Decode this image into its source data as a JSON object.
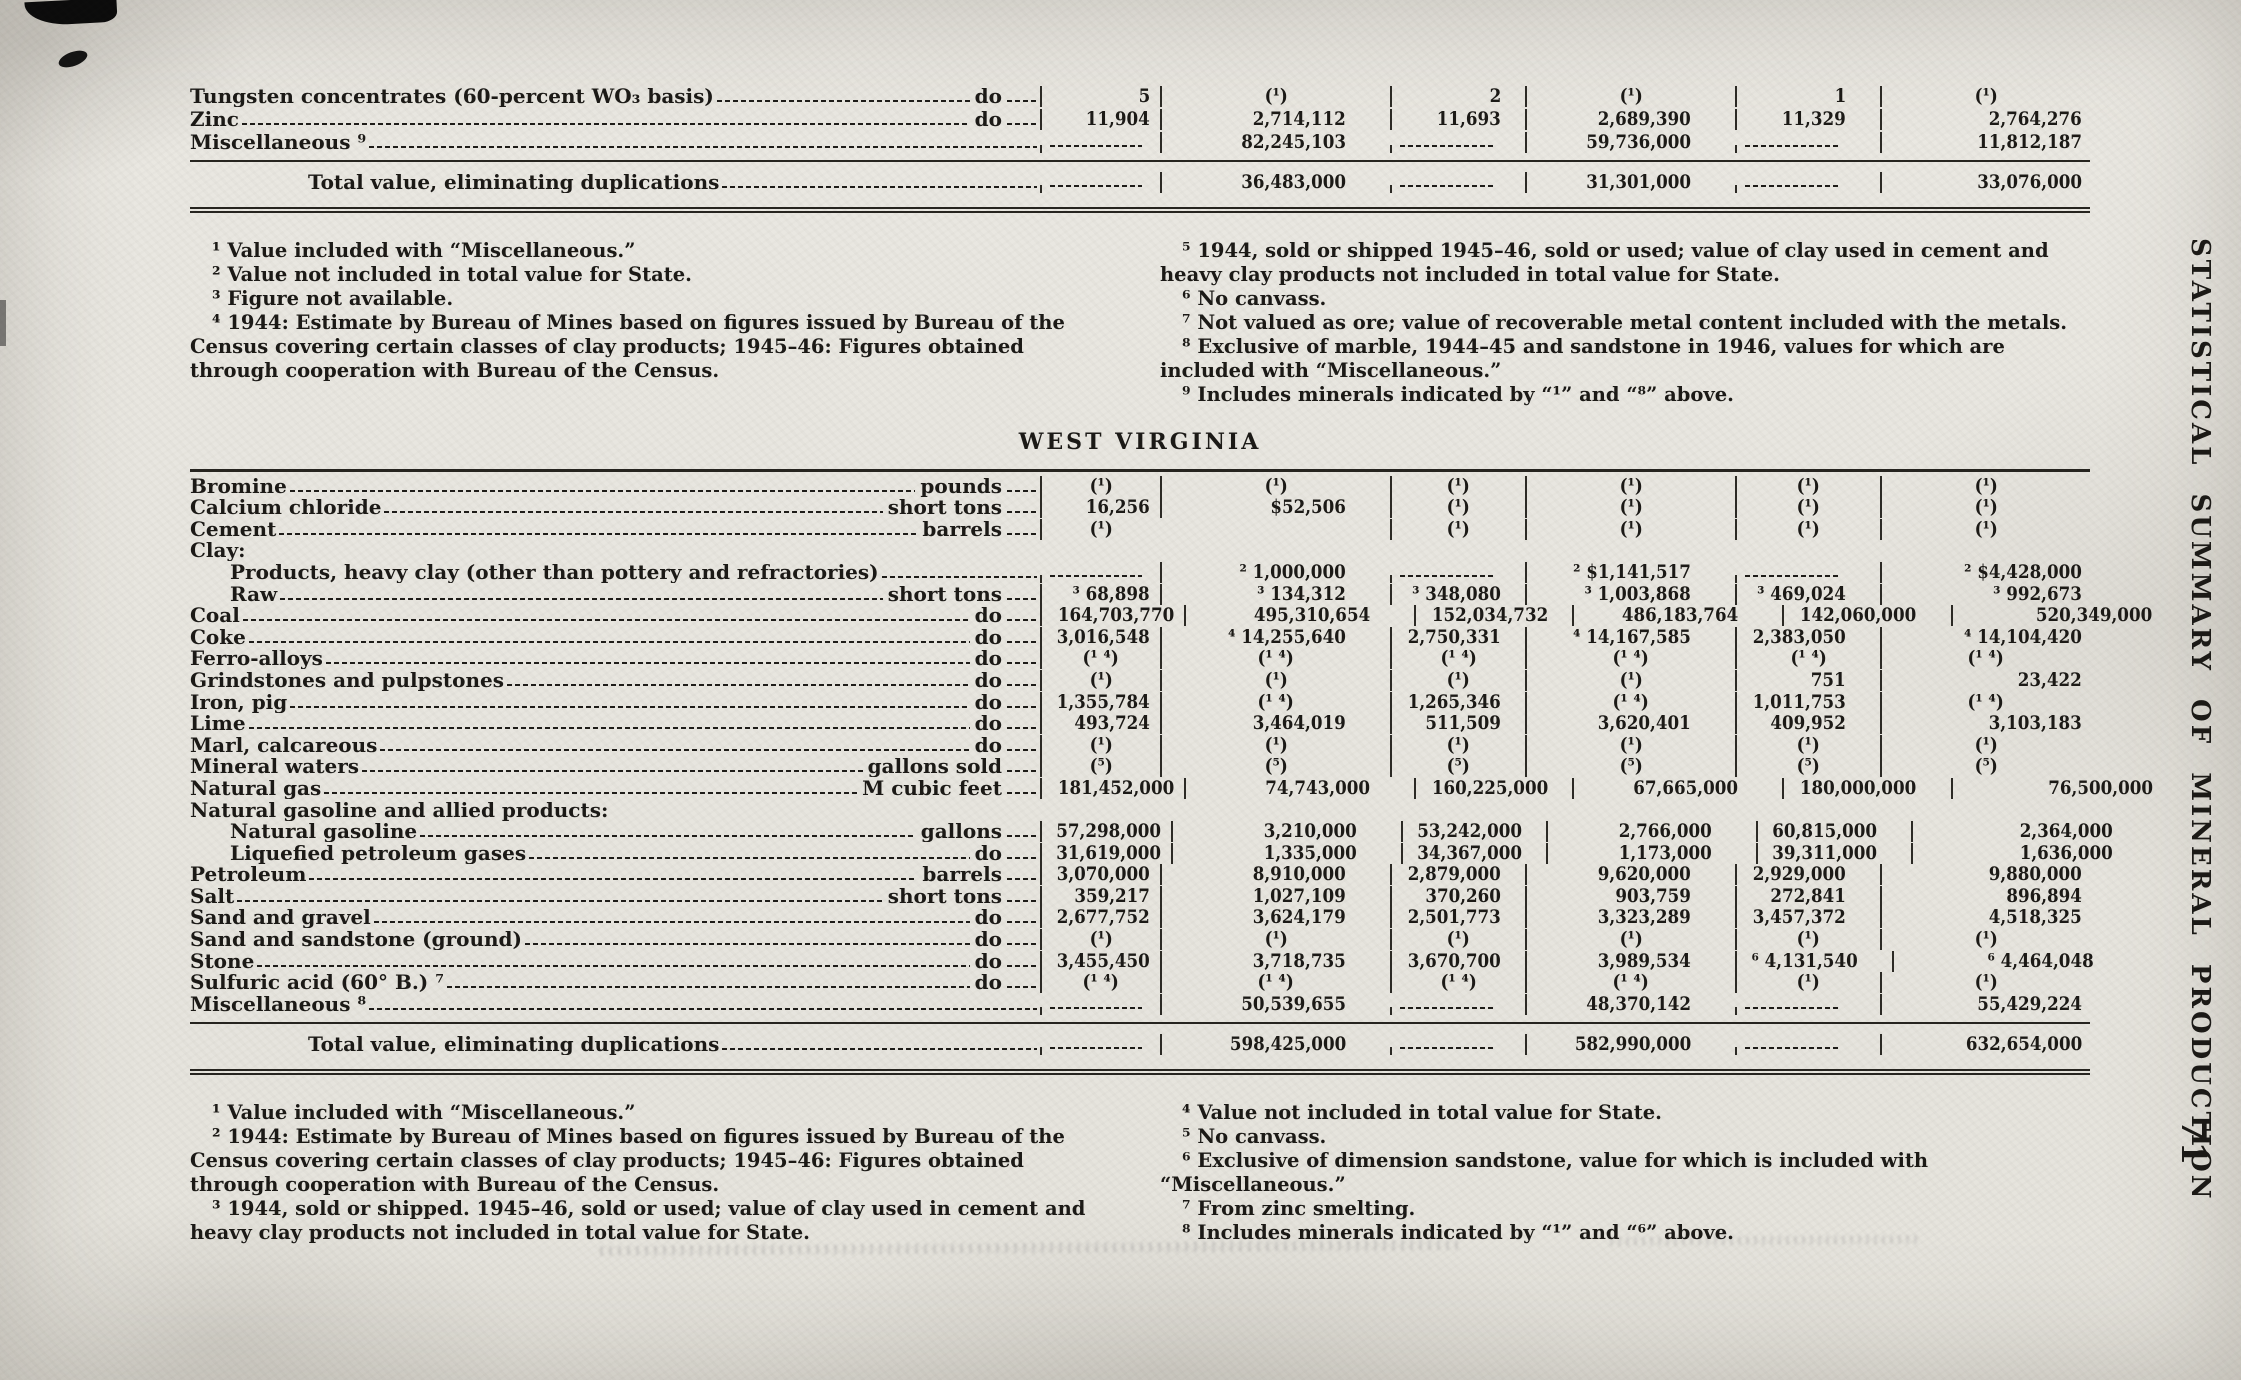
{
  "page": {
    "side_text": "STATISTICAL SUMMARY OF MINERAL PRODUCTION",
    "page_number": "71"
  },
  "section_title": "WEST VIRGINIA",
  "top_table": {
    "rows": [
      {
        "name": "Tungsten concentrates (60-percent WO₃ basis)",
        "unit": "do",
        "cells": [
          "5",
          "(¹)",
          "2",
          "(¹)",
          "1",
          "(¹)"
        ]
      },
      {
        "name": "Zinc",
        "unit": "do",
        "cells": [
          "11,904",
          "2,714,112",
          "11,693",
          "2,689,390",
          "11,329",
          "2,764,276"
        ]
      },
      {
        "name": "Miscellaneous ⁹",
        "unit": "",
        "cells": [
          "---",
          "82,245,103",
          "---",
          "59,736,000",
          "---",
          "11,812,187"
        ]
      }
    ],
    "total_row": {
      "name": "Total value, eliminating duplications",
      "unit": "",
      "cells": [
        "---",
        "36,483,000",
        "---",
        "31,301,000",
        "---",
        "33,076,000"
      ]
    }
  },
  "footnotes_top": {
    "left": [
      "¹ Value included with “Miscellaneous.”",
      "² Value not included in total value for State.",
      "³ Figure not available.",
      "⁴ 1944: Estimate by Bureau of Mines based on figures issued by Bureau of the Census covering certain classes of clay products; 1945–46: Figures obtained through cooperation with Bureau of the Census."
    ],
    "right": [
      "⁵ 1944, sold or shipped  1945–46, sold or used; value of clay used in cement and heavy clay products not included in total value for State.",
      "⁶ No canvass.",
      "⁷ Not valued as ore; value of recoverable metal content included with the metals.",
      "⁸ Exclusive of marble, 1944–45 and sandstone in 1946, values for which are included with “Miscellaneous.”",
      "⁹ Includes minerals indicated by “¹” and “⁸” above."
    ]
  },
  "main_table": {
    "rows": [
      {
        "name": "Bromine",
        "unit": "pounds",
        "cells": [
          "(¹)",
          "(¹)",
          "(¹)",
          "(¹)",
          "(¹)",
          "(¹)"
        ]
      },
      {
        "name": "Calcium chloride",
        "unit": "short tons",
        "cells": [
          "16,256",
          "$52,506",
          "(¹)",
          "(¹)",
          "(¹)",
          "(¹)"
        ]
      },
      {
        "name": "Cement",
        "unit": "barrels",
        "cells": [
          "(¹)",
          "",
          "(¹)",
          "(¹)",
          "(¹)",
          "(¹)"
        ]
      },
      {
        "name": "Clay:",
        "group": true
      },
      {
        "name": "Products, heavy clay (other than pottery and refractories)",
        "unit": "",
        "indent": 1,
        "cells": [
          "---",
          "² 1,000,000",
          "---",
          "² $1,141,517",
          "---",
          "² $4,428,000"
        ]
      },
      {
        "name": "Raw",
        "unit": "short tons",
        "indent": 1,
        "cells": [
          "³ 68,898",
          "³ 134,312",
          "³ 348,080",
          "³ 1,003,868",
          "³ 469,024",
          "³ 992,673"
        ]
      },
      {
        "name": "Coal",
        "unit": "do",
        "cells": [
          "164,703,770",
          "495,310,654",
          "152,034,732",
          "486,183,764",
          "142,060,000",
          "520,349,000"
        ]
      },
      {
        "name": "Coke",
        "unit": "do",
        "cells": [
          "3,016,548",
          "⁴ 14,255,640",
          "2,750,331",
          "⁴ 14,167,585",
          "2,383,050",
          "⁴ 14,104,420"
        ]
      },
      {
        "name": "Ferro-alloys",
        "unit": "do",
        "cells": [
          "(¹ ⁴)",
          "(¹ ⁴)",
          "(¹ ⁴)",
          "(¹ ⁴)",
          "(¹ ⁴)",
          "(¹ ⁴)"
        ]
      },
      {
        "name": "Grindstones and pulpstones",
        "unit": "do",
        "cells": [
          "(¹)",
          "(¹)",
          "(¹)",
          "(¹)",
          "751",
          "23,422"
        ]
      },
      {
        "name": "Iron, pig",
        "unit": "do",
        "cells": [
          "1,355,784",
          "(¹ ⁴)",
          "1,265,346",
          "(¹ ⁴)",
          "1,011,753",
          "(¹ ⁴)"
        ]
      },
      {
        "name": "Lime",
        "unit": "do",
        "cells": [
          "493,724",
          "3,464,019",
          "511,509",
          "3,620,401",
          "409,952",
          "3,103,183"
        ]
      },
      {
        "name": "Marl, calcareous",
        "unit": "do",
        "cells": [
          "(¹)",
          "(¹)",
          "(¹)",
          "(¹)",
          "(¹)",
          "(¹)"
        ]
      },
      {
        "name": "Mineral waters",
        "unit": "gallons sold",
        "cells": [
          "(⁵)",
          "(⁵)",
          "(⁵)",
          "(⁵)",
          "(⁵)",
          "(⁵)"
        ]
      },
      {
        "name": "Natural gas",
        "unit": "M cubic feet",
        "cells": [
          "181,452,000",
          "74,743,000",
          "160,225,000",
          "67,665,000",
          "180,000,000",
          "76,500,000"
        ]
      },
      {
        "name": "Natural gasoline and allied products:",
        "group": true
      },
      {
        "name": "Natural gasoline",
        "unit": "gallons",
        "indent": 1,
        "cells": [
          "57,298,000",
          "3,210,000",
          "53,242,000",
          "2,766,000",
          "60,815,000",
          "2,364,000"
        ]
      },
      {
        "name": "Liquefied petroleum gases",
        "unit": "do",
        "indent": 1,
        "cells": [
          "31,619,000",
          "1,335,000",
          "34,367,000",
          "1,173,000",
          "39,311,000",
          "1,636,000"
        ]
      },
      {
        "name": "Petroleum",
        "unit": "barrels",
        "cells": [
          "3,070,000",
          "8,910,000",
          "2,879,000",
          "9,620,000",
          "2,929,000",
          "9,880,000"
        ]
      },
      {
        "name": "Salt",
        "unit": "short tons",
        "cells": [
          "359,217",
          "1,027,109",
          "370,260",
          "903,759",
          "272,841",
          "896,894"
        ]
      },
      {
        "name": "Sand and gravel",
        "unit": "do",
        "cells": [
          "2,677,752",
          "3,624,179",
          "2,501,773",
          "3,323,289",
          "3,457,372",
          "4,518,325"
        ]
      },
      {
        "name": "Sand and sandstone (ground)",
        "unit": "do",
        "cells": [
          "(¹)",
          "(¹)",
          "(¹)",
          "(¹)",
          "(¹)",
          "(¹)"
        ]
      },
      {
        "name": "Stone",
        "unit": "do",
        "cells": [
          "3,455,450",
          "3,718,735",
          "3,670,700",
          "3,989,534",
          "⁶ 4,131,540",
          "⁶ 4,464,048"
        ]
      },
      {
        "name": "Sulfuric acid (60° B.) ⁷",
        "unit": "do",
        "cells": [
          "(¹ ⁴)",
          "(¹ ⁴)",
          "(¹ ⁴)",
          "(¹ ⁴)",
          "(¹)",
          "(¹)"
        ]
      },
      {
        "name": "Miscellaneous ⁸",
        "unit": "",
        "cells": [
          "---",
          "50,539,655",
          "---",
          "48,370,142",
          "---",
          "55,429,224"
        ]
      }
    ],
    "total_row": {
      "name": "Total value, eliminating duplications",
      "unit": "",
      "cells": [
        "---",
        "598,425,000",
        "---",
        "582,990,000",
        "---",
        "632,654,000"
      ]
    }
  },
  "footnotes_bottom": {
    "left": [
      "¹ Value included with “Miscellaneous.”",
      "² 1944: Estimate by Bureau of Mines based on figures issued by Bureau of the Census covering certain classes of clay products; 1945–46: Figures obtained through cooperation with Bureau of the Census.",
      "³ 1944, sold or shipped.  1945–46, sold or used; value of clay used in cement and heavy clay products not included in total value for State."
    ],
    "right": [
      "⁴ Value not included in total value for State.",
      "⁵ No canvass.",
      "⁶ Exclusive of dimension sandstone, value for which is included with “Miscellaneous.”",
      "⁷ From zinc smelting.",
      "⁸ Includes minerals indicated by “¹” and “⁶” above."
    ]
  }
}
